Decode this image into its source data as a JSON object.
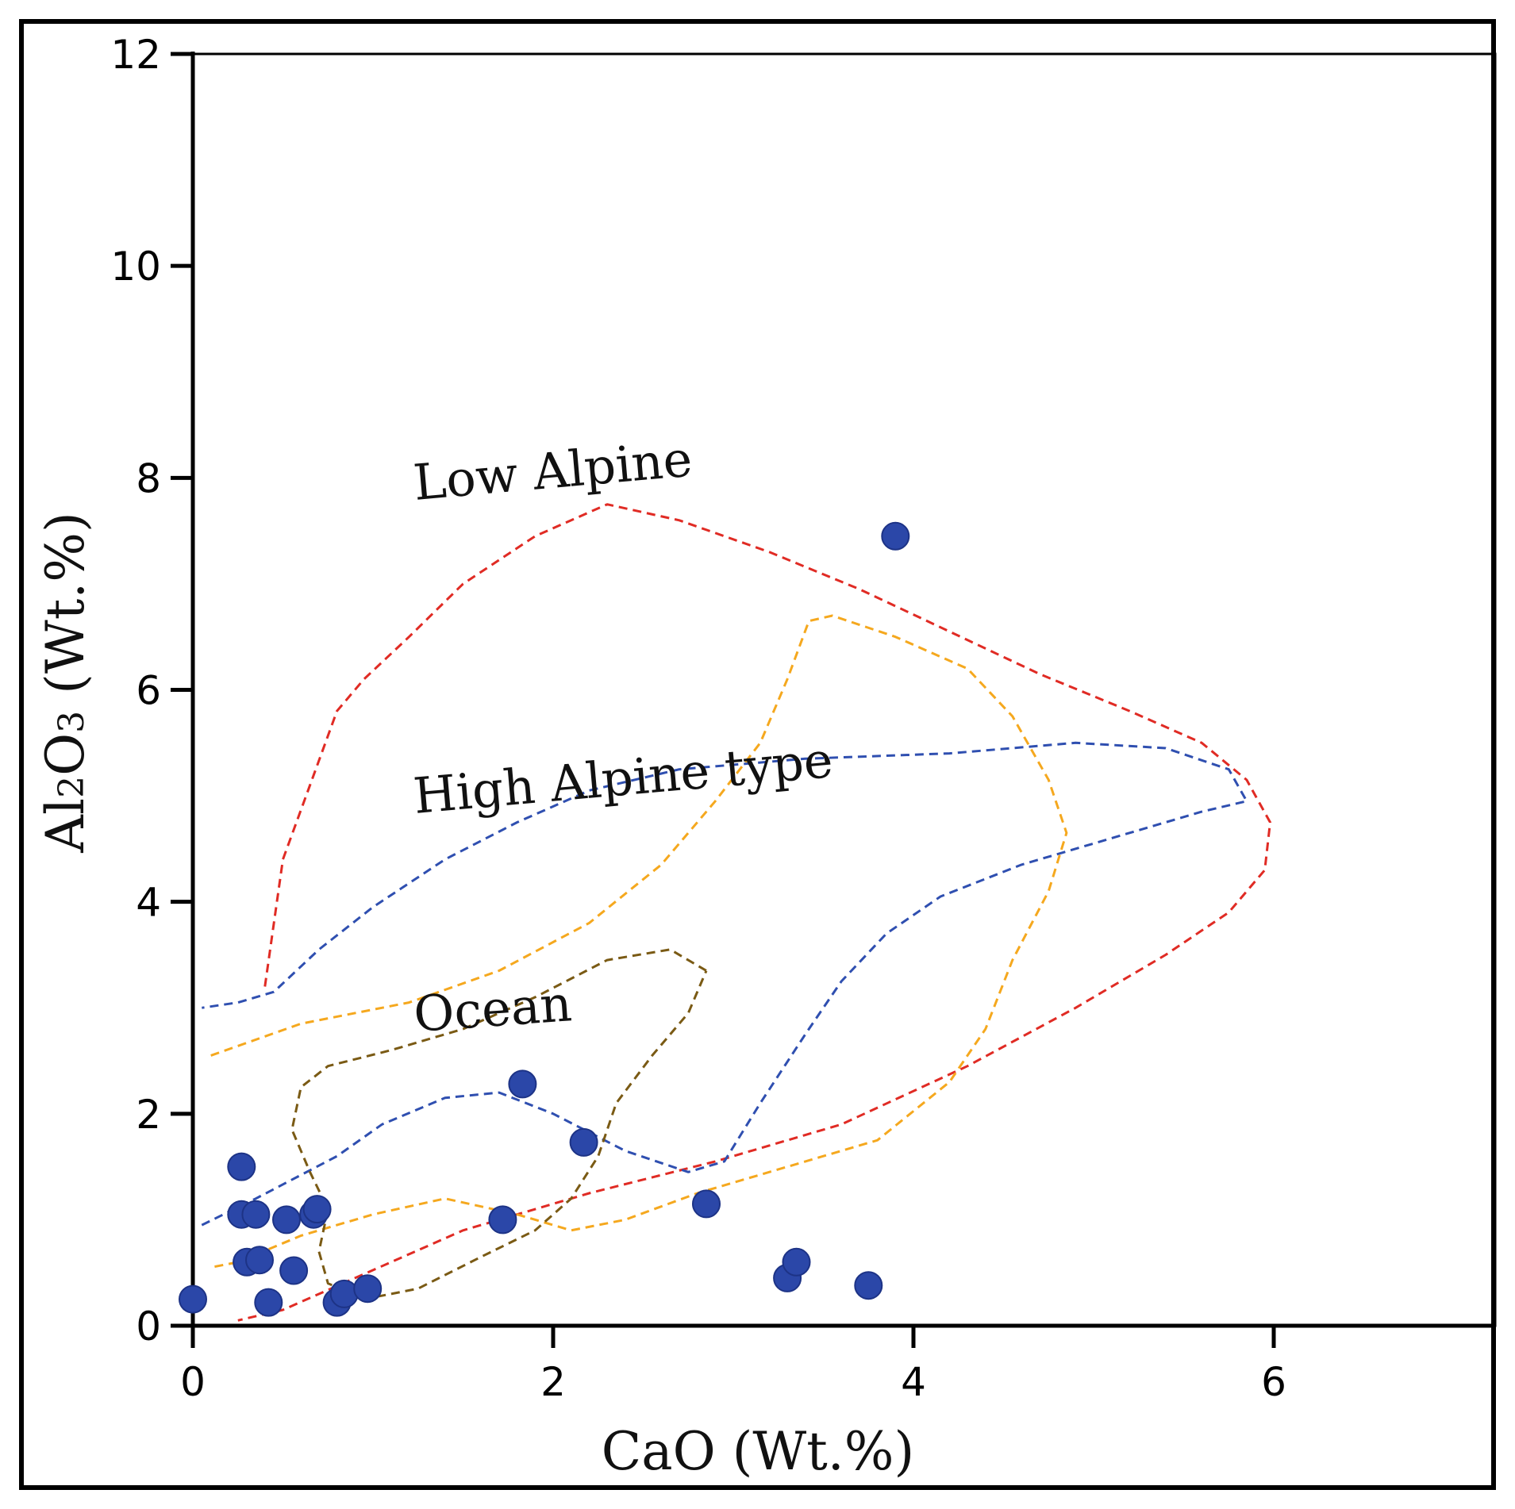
{
  "chart_data": {
    "type": "scatter",
    "xlabel": "CaO (Wt.%)",
    "ylabel_parts": [
      "Al",
      "2",
      "O",
      "3",
      " (Wt.%)"
    ],
    "xlim": [
      0,
      7.5
    ],
    "ylim": [
      0,
      12
    ],
    "xticks": [
      0,
      2,
      4,
      6
    ],
    "yticks": [
      0,
      2,
      4,
      6,
      8,
      10,
      12
    ],
    "grid": false,
    "marker_color": "#2b47a8",
    "points": [
      {
        "x": 0.0,
        "y": 0.25
      },
      {
        "x": 0.27,
        "y": 1.5
      },
      {
        "x": 0.27,
        "y": 1.05
      },
      {
        "x": 0.35,
        "y": 1.05
      },
      {
        "x": 0.3,
        "y": 0.6
      },
      {
        "x": 0.37,
        "y": 0.62
      },
      {
        "x": 0.42,
        "y": 0.22
      },
      {
        "x": 0.52,
        "y": 1.0
      },
      {
        "x": 0.56,
        "y": 0.52
      },
      {
        "x": 0.67,
        "y": 1.05
      },
      {
        "x": 0.69,
        "y": 1.1
      },
      {
        "x": 0.8,
        "y": 0.22
      },
      {
        "x": 0.84,
        "y": 0.3
      },
      {
        "x": 0.97,
        "y": 0.35
      },
      {
        "x": 1.72,
        "y": 1.0
      },
      {
        "x": 1.83,
        "y": 2.28
      },
      {
        "x": 2.17,
        "y": 1.73
      },
      {
        "x": 2.85,
        "y": 1.15
      },
      {
        "x": 3.3,
        "y": 0.45
      },
      {
        "x": 3.35,
        "y": 0.6
      },
      {
        "x": 3.75,
        "y": 0.38
      },
      {
        "x": 3.9,
        "y": 7.45
      }
    ],
    "fields": [
      {
        "label": "Low Alpine",
        "color": "#e02b24",
        "outline": [
          [
            0.4,
            3.2
          ],
          [
            0.5,
            4.4
          ],
          [
            0.65,
            5.1
          ],
          [
            0.8,
            5.8
          ],
          [
            0.95,
            6.1
          ],
          [
            1.2,
            6.5
          ],
          [
            1.5,
            7.0
          ],
          [
            1.9,
            7.45
          ],
          [
            2.3,
            7.75
          ],
          [
            2.7,
            7.6
          ],
          [
            3.2,
            7.3
          ],
          [
            3.7,
            6.95
          ],
          [
            4.2,
            6.55
          ],
          [
            4.7,
            6.15
          ],
          [
            5.2,
            5.8
          ],
          [
            5.6,
            5.5
          ],
          [
            5.85,
            5.15
          ],
          [
            5.98,
            4.75
          ],
          [
            5.95,
            4.3
          ],
          [
            5.75,
            3.9
          ],
          [
            5.4,
            3.5
          ],
          [
            4.9,
            3.0
          ],
          [
            4.3,
            2.45
          ],
          [
            3.6,
            1.9
          ],
          [
            2.9,
            1.55
          ],
          [
            2.2,
            1.25
          ],
          [
            1.5,
            0.9
          ],
          [
            0.9,
            0.45
          ],
          [
            0.5,
            0.15
          ],
          [
            0.25,
            0.05
          ]
        ]
      },
      {
        "label": "High Alpine type",
        "color": "#2f4fb0",
        "outline": [
          [
            0.05,
            0.95
          ],
          [
            0.35,
            1.2
          ],
          [
            0.8,
            1.6
          ],
          [
            1.05,
            1.9
          ],
          [
            1.4,
            2.15
          ],
          [
            1.7,
            2.2
          ],
          [
            2.0,
            2.0
          ],
          [
            2.4,
            1.65
          ],
          [
            2.75,
            1.45
          ],
          [
            2.95,
            1.55
          ],
          [
            3.15,
            2.1
          ],
          [
            3.4,
            2.75
          ],
          [
            3.6,
            3.25
          ],
          [
            3.85,
            3.7
          ],
          [
            4.15,
            4.05
          ],
          [
            4.6,
            4.35
          ],
          [
            5.2,
            4.65
          ],
          [
            5.6,
            4.85
          ],
          [
            5.85,
            4.95
          ],
          [
            5.75,
            5.25
          ],
          [
            5.4,
            5.45
          ],
          [
            4.9,
            5.5
          ],
          [
            4.2,
            5.4
          ],
          [
            3.4,
            5.35
          ],
          [
            2.7,
            5.25
          ],
          [
            2.2,
            5.05
          ],
          [
            1.8,
            4.75
          ],
          [
            1.4,
            4.4
          ],
          [
            1.0,
            3.95
          ],
          [
            0.7,
            3.55
          ],
          [
            0.45,
            3.15
          ],
          [
            0.25,
            3.05
          ],
          [
            0.05,
            3.0
          ]
        ]
      },
      {
        "label": "",
        "color": "#f5a81e",
        "outline": [
          [
            0.1,
            2.55
          ],
          [
            0.6,
            2.85
          ],
          [
            1.2,
            3.05
          ],
          [
            1.7,
            3.35
          ],
          [
            2.2,
            3.8
          ],
          [
            2.6,
            4.35
          ],
          [
            2.9,
            4.95
          ],
          [
            3.15,
            5.5
          ],
          [
            3.3,
            6.1
          ],
          [
            3.42,
            6.65
          ],
          [
            3.55,
            6.7
          ],
          [
            3.9,
            6.5
          ],
          [
            4.3,
            6.2
          ],
          [
            4.55,
            5.75
          ],
          [
            4.75,
            5.15
          ],
          [
            4.85,
            4.65
          ],
          [
            4.75,
            4.1
          ],
          [
            4.55,
            3.45
          ],
          [
            4.4,
            2.8
          ],
          [
            4.2,
            2.3
          ],
          [
            3.8,
            1.75
          ],
          [
            3.3,
            1.5
          ],
          [
            2.8,
            1.25
          ],
          [
            2.4,
            1.0
          ],
          [
            2.1,
            0.9
          ],
          [
            1.8,
            1.05
          ],
          [
            1.4,
            1.2
          ],
          [
            1.0,
            1.05
          ],
          [
            0.6,
            0.85
          ],
          [
            0.25,
            0.6
          ],
          [
            0.1,
            0.55
          ]
        ]
      },
      {
        "label": "Ocean",
        "color": "#7a5a14",
        "outline": [
          [
            2.85,
            3.35
          ],
          [
            2.65,
            3.55
          ],
          [
            2.3,
            3.45
          ],
          [
            1.9,
            3.1
          ],
          [
            1.5,
            2.8
          ],
          [
            1.1,
            2.6
          ],
          [
            0.75,
            2.45
          ],
          [
            0.6,
            2.25
          ],
          [
            0.55,
            1.85
          ],
          [
            0.65,
            1.45
          ],
          [
            0.75,
            1.1
          ],
          [
            0.7,
            0.7
          ],
          [
            0.75,
            0.4
          ],
          [
            0.95,
            0.25
          ],
          [
            1.25,
            0.35
          ],
          [
            1.6,
            0.65
          ],
          [
            1.9,
            0.9
          ],
          [
            2.1,
            1.2
          ],
          [
            2.25,
            1.6
          ],
          [
            2.35,
            2.1
          ],
          [
            2.55,
            2.55
          ],
          [
            2.75,
            2.95
          ],
          [
            2.85,
            3.35
          ]
        ]
      }
    ],
    "region_labels": [
      "Low Alpine",
      "High Alpine type",
      "Ocean"
    ]
  }
}
